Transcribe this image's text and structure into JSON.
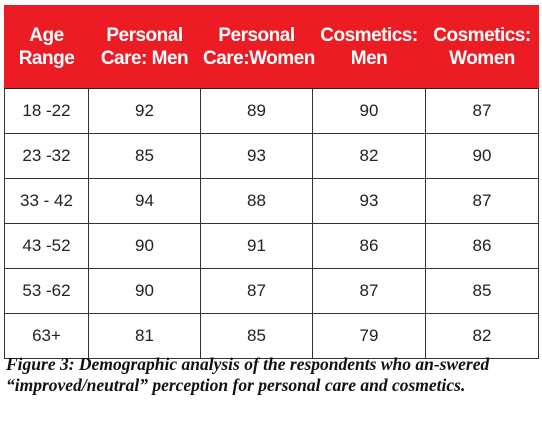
{
  "table": {
    "header": {
      "age_line1": "Age",
      "age_line2": "Range",
      "pcm_line1": "Personal",
      "pcm_line2": "Care: Men",
      "pcw_line1": "Personal",
      "pcw_line2": "Care:Women",
      "cm_line1": "Cosmetics:",
      "cm_line2": "Men",
      "cw_line1": "Cosmetics:",
      "cw_line2": "Women"
    },
    "rows": [
      [
        "18 -22",
        "92",
        "89",
        "90",
        "87"
      ],
      [
        "23 -32",
        "85",
        "93",
        "82",
        "90"
      ],
      [
        "33 - 42",
        "94",
        "88",
        "93",
        "87"
      ],
      [
        "43 -52",
        "90",
        "91",
        "86",
        "86"
      ],
      [
        "53 -62",
        "90",
        "87",
        "87",
        "85"
      ],
      [
        "63+",
        "81",
        "85",
        "79",
        "82"
      ]
    ]
  },
  "caption": "Figure 3: Demographic analysis of the respondents who an-swered “improved/neutral” perception for personal care and cosmetics.",
  "colors": {
    "header_bg": "#ec1c24",
    "header_text": "#ffffff",
    "grid": "#333333"
  }
}
